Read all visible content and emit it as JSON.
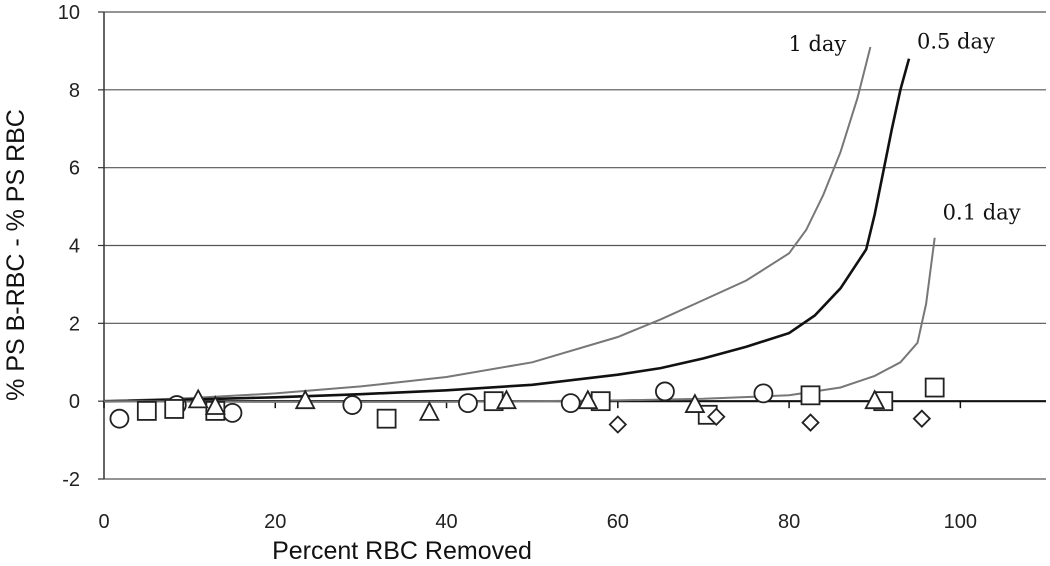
{
  "chart_data": {
    "type": "scatter",
    "xlabel": "Percent RBC Removed",
    "ylabel": "% PS B-RBC - % PS RBC",
    "xlim": [
      0,
      110
    ],
    "ylim": [
      -2,
      10
    ],
    "x_ticks": [
      "0",
      "20",
      "40",
      "60",
      "80",
      "100"
    ],
    "y_ticks": [
      "-2",
      "0",
      "2",
      "4",
      "6",
      "8",
      "10"
    ],
    "grid": "horizontal",
    "lines": [
      {
        "label": "1 day",
        "color": "#777777",
        "points": [
          [
            0,
            0
          ],
          [
            10,
            0.08
          ],
          [
            20,
            0.2
          ],
          [
            30,
            0.38
          ],
          [
            40,
            0.62
          ],
          [
            50,
            1.0
          ],
          [
            60,
            1.65
          ],
          [
            65,
            2.1
          ],
          [
            70,
            2.6
          ],
          [
            75,
            3.1
          ],
          [
            80,
            3.8
          ],
          [
            82,
            4.4
          ],
          [
            84,
            5.3
          ],
          [
            86,
            6.4
          ],
          [
            88,
            7.8
          ],
          [
            89.5,
            9.1
          ]
        ]
      },
      {
        "label": "0.5 day",
        "color": "#111111",
        "points": [
          [
            0,
            0
          ],
          [
            10,
            0.04
          ],
          [
            20,
            0.1
          ],
          [
            30,
            0.18
          ],
          [
            40,
            0.28
          ],
          [
            50,
            0.42
          ],
          [
            60,
            0.68
          ],
          [
            65,
            0.85
          ],
          [
            70,
            1.1
          ],
          [
            75,
            1.4
          ],
          [
            80,
            1.75
          ],
          [
            83,
            2.2
          ],
          [
            86,
            2.9
          ],
          [
            89,
            3.9
          ],
          [
            90,
            4.8
          ],
          [
            91,
            5.9
          ],
          [
            92,
            7.0
          ],
          [
            93,
            8.0
          ],
          [
            94,
            8.8
          ]
        ]
      },
      {
        "label": "0.1 day",
        "color": "#777777",
        "points": [
          [
            0,
            0
          ],
          [
            20,
            -0.02
          ],
          [
            40,
            -0.02
          ],
          [
            60,
            0.02
          ],
          [
            70,
            0.06
          ],
          [
            80,
            0.15
          ],
          [
            86,
            0.35
          ],
          [
            90,
            0.65
          ],
          [
            93,
            1.0
          ],
          [
            95,
            1.5
          ],
          [
            96,
            2.5
          ],
          [
            97,
            4.2
          ]
        ]
      }
    ],
    "baseline": {
      "y": 0,
      "x": [
        0,
        110
      ]
    },
    "series": [
      {
        "marker": "circle",
        "points": [
          [
            1.8,
            -0.45
          ],
          [
            8.5,
            -0.1
          ],
          [
            15,
            -0.3
          ],
          [
            29,
            -0.1
          ],
          [
            42.5,
            -0.05
          ],
          [
            54.5,
            -0.05
          ],
          [
            65.5,
            0.25
          ],
          [
            77,
            0.2
          ]
        ]
      },
      {
        "marker": "square",
        "points": [
          [
            5,
            -0.25
          ],
          [
            8.2,
            -0.2
          ],
          [
            13,
            -0.25
          ],
          [
            33,
            -0.45
          ],
          [
            45.5,
            0
          ],
          [
            58,
            0
          ],
          [
            70.5,
            -0.35
          ],
          [
            82.5,
            0.15
          ],
          [
            91,
            0
          ],
          [
            97,
            0.35
          ]
        ]
      },
      {
        "marker": "triangle",
        "points": [
          [
            11,
            0.02
          ],
          [
            13,
            -0.15
          ],
          [
            23.5,
            0
          ],
          [
            38,
            -0.3
          ],
          [
            47,
            0
          ],
          [
            56.5,
            0
          ],
          [
            69,
            -0.1
          ],
          [
            90,
            0
          ]
        ]
      },
      {
        "marker": "diamond",
        "points": [
          [
            60,
            -0.6
          ],
          [
            71.5,
            -0.4
          ],
          [
            82.5,
            -0.55
          ],
          [
            95.5,
            -0.45
          ]
        ]
      }
    ]
  }
}
